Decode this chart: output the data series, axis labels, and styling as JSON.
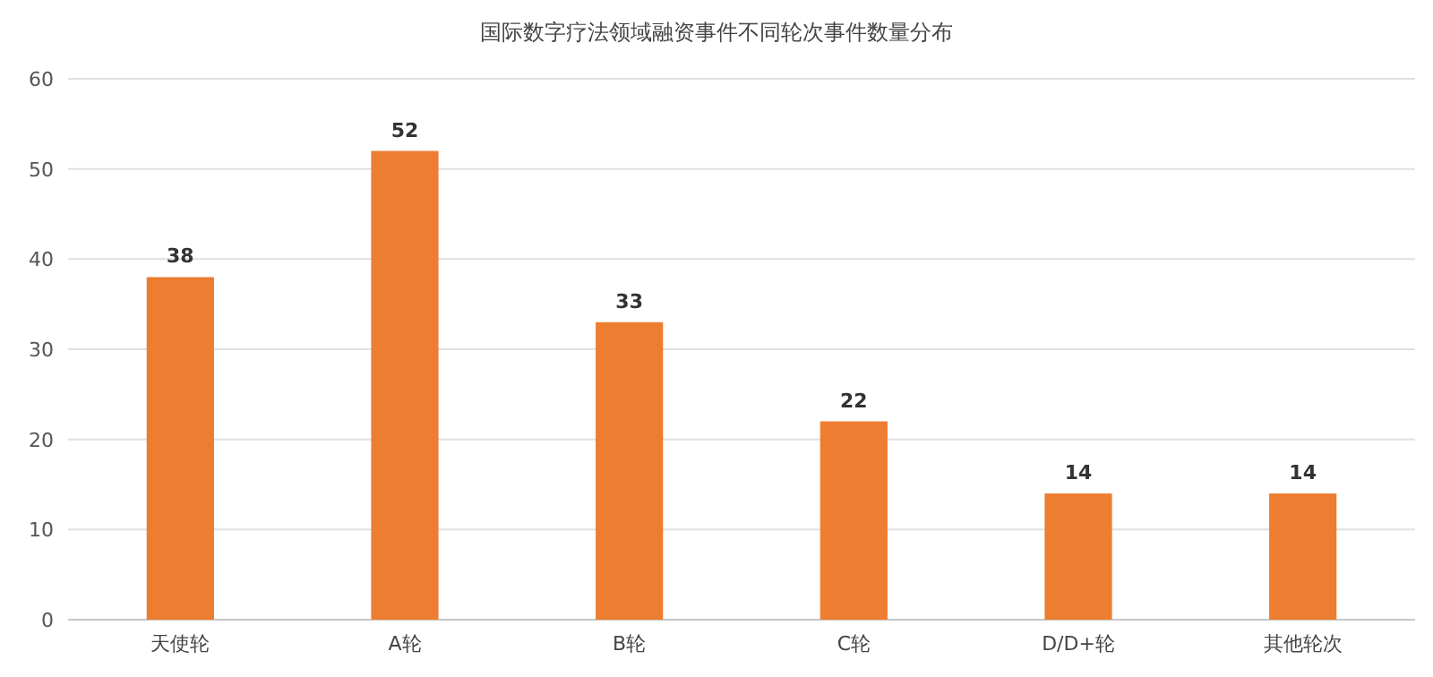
{
  "chart_data": {
    "type": "bar",
    "title": "国际数字疗法领域融资事件不同轮次事件数量分布",
    "categories": [
      "天使轮",
      "A轮",
      "B轮",
      "C轮",
      "D/D+轮",
      "其他轮次"
    ],
    "values": [
      38,
      52,
      33,
      22,
      14,
      14
    ],
    "color": "#ed7d31",
    "ylim": [
      0,
      60
    ],
    "yticks": [
      0,
      10,
      20,
      30,
      40,
      50,
      60
    ],
    "grid": "y",
    "data_labels": true
  }
}
